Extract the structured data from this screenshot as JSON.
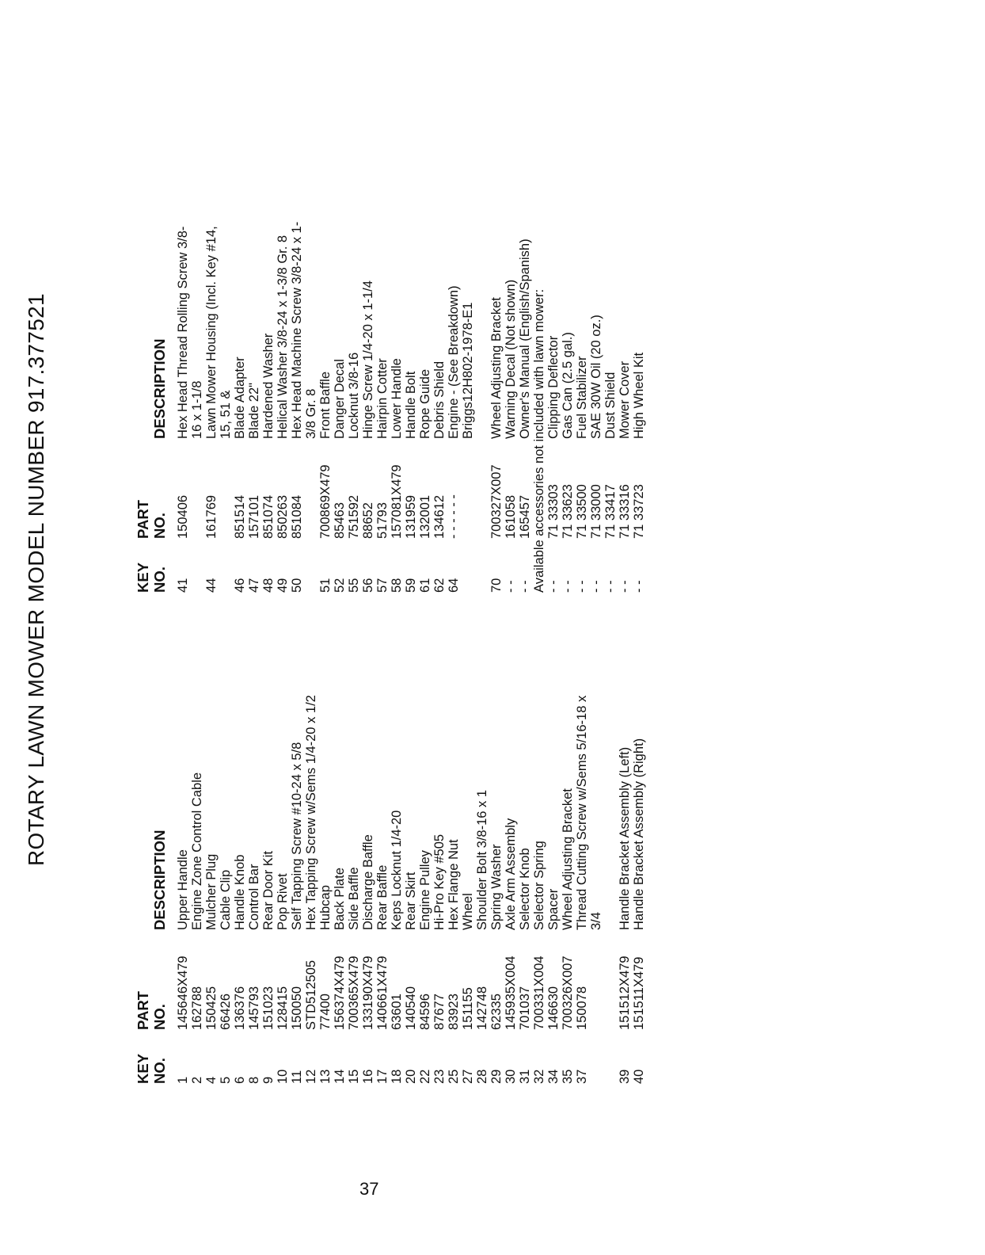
{
  "title": "ROTARY LAWN MOWER MODEL NUMBER 917.377521",
  "headers": {
    "key": "KEY\nNO.",
    "part": "PART\nNO.",
    "desc": "DESCRIPTION"
  },
  "left_table": [
    [
      "1",
      "145646X479",
      "Upper Handle"
    ],
    [
      "2",
      "162788",
      "Engine Zone Control Cable"
    ],
    [
      "4",
      "150425",
      "Mulcher Plug"
    ],
    [
      "5",
      "66426",
      "Cable Clip"
    ],
    [
      "6",
      "136376",
      "Handle Knob"
    ],
    [
      "8",
      "145793",
      "Control Bar"
    ],
    [
      "9",
      "151023",
      "Rear Door Kit"
    ],
    [
      "10",
      "128415",
      "Pop Rivet"
    ],
    [
      "11",
      "150050",
      "Self Tapping Screw  #10-24 x 5/8"
    ],
    [
      "12",
      "STD512505",
      "Hex Tapping Screw w/Sems  1/4-20 x 1/2"
    ],
    [
      "13",
      "77400",
      "Hubcap"
    ],
    [
      "14",
      "156374X479",
      "Back Plate"
    ],
    [
      "15",
      "700365X479",
      "Side Baffle"
    ],
    [
      "16",
      "133190X479",
      "Discharge Baffle"
    ],
    [
      "17",
      "140661X479",
      "Rear Baffle"
    ],
    [
      "18",
      "63601",
      "Keps Locknut 1/4-20"
    ],
    [
      "20",
      "140540",
      "Rear Skirt"
    ],
    [
      "22",
      "84596",
      "Engine Pulley"
    ],
    [
      "23",
      "87677",
      "Hi-Pro Key  #505"
    ],
    [
      "25",
      "83923",
      "Hex Flange Nut"
    ],
    [
      "27",
      "151155",
      "Wheel"
    ],
    [
      "28",
      "142748",
      "Shoulder Bolt  3/8-16 x 1"
    ],
    [
      "29",
      "62335",
      "Spring Washer"
    ],
    [
      "30",
      "145935X004",
      "Axle Arm Assembly"
    ],
    [
      "31",
      "701037",
      "Selector Knob"
    ],
    [
      "32",
      "700331X004",
      "Selector Spring"
    ],
    [
      "34",
      "146630",
      "Spacer"
    ],
    [
      "35",
      "700326X007",
      "Wheel Adjusting Bracket"
    ],
    [
      "37",
      "150078",
      "Thread Cutting Screw w/Sems  5/16-18 x"
    ],
    [
      "",
      "",
      "3/4"
    ],
    [
      "39",
      "151512X479",
      "Handle Bracket Assembly (Left)"
    ],
    [
      "40",
      "151511X479",
      "Handle Bracket Assembly (Right)"
    ]
  ],
  "right_table": [
    [
      "41",
      "150406",
      "Hex Head Thread Rolling Screw  3/8-"
    ],
    [
      "",
      "",
      "16 x 1-1/8"
    ],
    [
      "44",
      "161769",
      "Lawn Mower Housing (Incl. Key #14,"
    ],
    [
      "",
      "",
      "15, 51 &"
    ],
    [
      "46",
      "851514",
      "Blade Adapter"
    ],
    [
      "47",
      "157101",
      "Blade 22\""
    ],
    [
      "48",
      "851074",
      "Hardened Washer"
    ],
    [
      "49",
      "850263",
      "Helical Washer  3/8-24 x 1-3/8 Gr. 8"
    ],
    [
      "50",
      "851084",
      "Hex Head Machine Screw  3/8-24 x 1-"
    ],
    [
      "",
      "",
      "3/8 Gr. 8"
    ],
    [
      "51",
      "700869X479",
      "Front Baffle"
    ],
    [
      "52",
      "85463",
      "Danger Decal"
    ],
    [
      "55",
      "751592",
      "Locknut  3/8-16"
    ],
    [
      "56",
      "88652",
      "Hinge Screw  1/4-20 x 1-1/4"
    ],
    [
      "57",
      "51793",
      "Hairpin Cotter"
    ],
    [
      "58",
      "157081X479",
      "Lower Handle"
    ],
    [
      "59",
      "131959",
      "Handle Bolt"
    ],
    [
      "61",
      "132001",
      "Rope Guide"
    ],
    [
      "62",
      "134612",
      "Debris Shield"
    ],
    [
      "64",
      "- - - - - -",
      "Engine - (See Breakdown)"
    ],
    [
      "",
      "",
      "Briggs12H802-1978-E1"
    ],
    [
      "70",
      "700327X007",
      "Wheel Adjusting Bracket"
    ],
    [
      "- -",
      "161058",
      "Warning Decal (Not shown)"
    ],
    [
      "- -",
      "165457",
      "Owner's Manual (English/Spanish)"
    ]
  ],
  "accessories_note": "Available accessories not included with lawn mower:",
  "accessories": [
    [
      "- -",
      "71 33303",
      "Clipping Deflector"
    ],
    [
      "- -",
      "71 33623",
      "Gas Can (2.5 gal.)"
    ],
    [
      "- -",
      "71 33500",
      "Fuel Stabilizer"
    ],
    [
      "- -",
      "71 33000",
      "SAE 30W Oil (20 oz.)"
    ],
    [
      "- -",
      "71 33417",
      "Dust Shield"
    ],
    [
      "- -",
      "71 33316",
      "Mower Cover"
    ],
    [
      "- -",
      "71 33723",
      "High Wheel Kit"
    ]
  ],
  "page_number": "37"
}
